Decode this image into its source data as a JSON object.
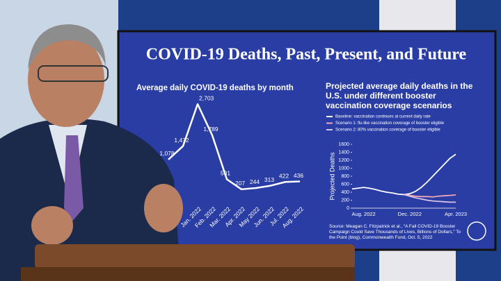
{
  "slide": {
    "title": "COVID-19 Deaths, Past, Present, and Future",
    "source": "Source: Meagan C. Fitzpatrick et al., “A Fall COVID-19 Booster Campaign Could Save Thousands of Lives, Billions of Dollars,” To the Point (blog), Commonwealth Fund, Oct. 5, 2022"
  },
  "chart_data": [
    {
      "type": "line",
      "title": "Average daily COVID-19 deaths by month",
      "categories": [
        null,
        null,
        "Jan. 2022",
        "Feb. 2022",
        "Mar. 2022",
        "Apr. 2022",
        "May 2022",
        "Jun. 2022",
        "Jul. 2022",
        "Aug. 2022"
      ],
      "values": [
        1078,
        1472,
        2703,
        1789,
        501,
        207,
        244,
        313,
        422,
        436
      ],
      "value_labels": [
        "1,078",
        "1,472",
        "2,703",
        "1,789",
        "501",
        "207",
        "244",
        "313",
        "422",
        "436"
      ],
      "color": "#ffffff"
    },
    {
      "type": "line",
      "title": "Projected average daily deaths in the U.S. under different booster vaccination coverage scenarios",
      "ylabel": "Projected Deaths",
      "categories": [
        null,
        null,
        "Aug. 2022",
        null,
        null,
        null,
        null,
        null,
        null,
        null,
        "Dec. 2022",
        null,
        null,
        null,
        null,
        null,
        null,
        null,
        "Apr. 2023"
      ],
      "ylim": [
        0,
        1600
      ],
      "yticks": [
        0,
        200,
        400,
        600,
        800,
        1000,
        1200,
        1400,
        1600
      ],
      "series": [
        {
          "name": "Baseline: vaccination continues at current daily rate",
          "color": "#ffffff",
          "values": [
            480,
            500,
            520,
            500,
            470,
            430,
            400,
            380,
            350,
            340,
            360,
            420,
            520,
            650,
            800,
            950,
            1100,
            1250,
            1350
          ]
        },
        {
          "name": "Scenario 1: flu-like vaccination coverage of booster eligible",
          "color": "#f2a6b8",
          "values": [
            null,
            null,
            null,
            null,
            null,
            null,
            null,
            null,
            null,
            340,
            320,
            300,
            290,
            290,
            280,
            300,
            310,
            320,
            330
          ]
        },
        {
          "name": "Scenario 2: 80% vaccination coverage of booster eligible",
          "color": "#d9c2e6",
          "values": [
            null,
            null,
            null,
            null,
            null,
            null,
            null,
            null,
            null,
            340,
            300,
            260,
            230,
            200,
            180,
            170,
            160,
            150,
            150
          ]
        }
      ]
    }
  ]
}
